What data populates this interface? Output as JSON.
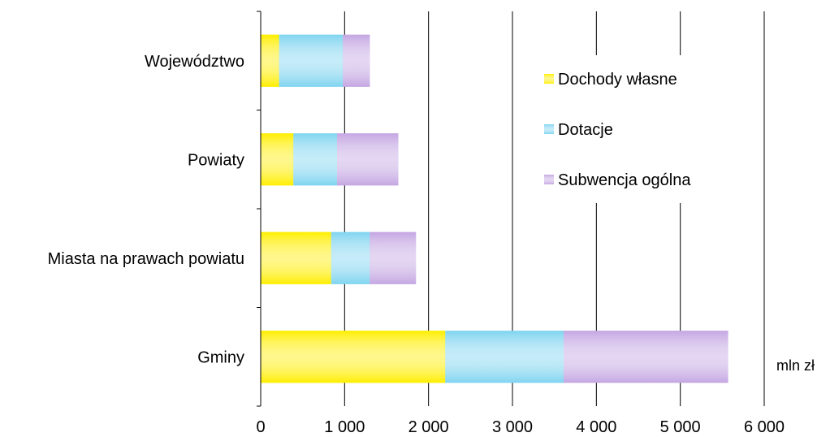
{
  "chart_data": {
    "type": "bar",
    "orientation": "horizontal",
    "stacked": true,
    "categories": [
      "Województwo",
      "Powiaty",
      "Miasta na prawach powiatu",
      "Gminy"
    ],
    "series": [
      {
        "name": "Dochody własne",
        "color": "#ffee00",
        "values": [
          220,
          390,
          840,
          2200
        ]
      },
      {
        "name": "Dotacje",
        "color": "#7fd4f0",
        "values": [
          760,
          520,
          460,
          1410
        ]
      },
      {
        "name": "Subwencja ogólna",
        "color": "#c4a6e2",
        "values": [
          320,
          730,
          550,
          1960
        ]
      }
    ],
    "xlim": [
      0,
      6000
    ],
    "x_ticks": [
      0,
      1000,
      2000,
      3000,
      4000,
      5000,
      6000
    ],
    "x_tick_labels": [
      "0",
      "1 000",
      "2 000",
      "3 000",
      "4 000",
      "5 000",
      "6 000"
    ],
    "unit_label": "mln zł",
    "grid": "vertical",
    "legend_position": "inside right"
  }
}
